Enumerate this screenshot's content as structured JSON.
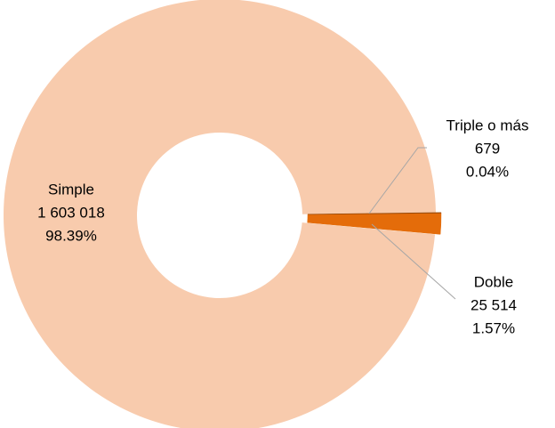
{
  "chart_data": {
    "type": "donut",
    "categories": [
      "Simple",
      "Doble",
      "Triple o más"
    ],
    "values": [
      1603018,
      25514,
      679
    ],
    "value_labels": [
      "1 603 018",
      "25 514",
      "679"
    ],
    "percentages": [
      98.39,
      1.57,
      0.04
    ],
    "percentage_labels": [
      "98.39%",
      "1.57%",
      "0.04%"
    ],
    "colors": [
      "#f8cbad",
      "#e46c0a",
      "#984807"
    ]
  }
}
